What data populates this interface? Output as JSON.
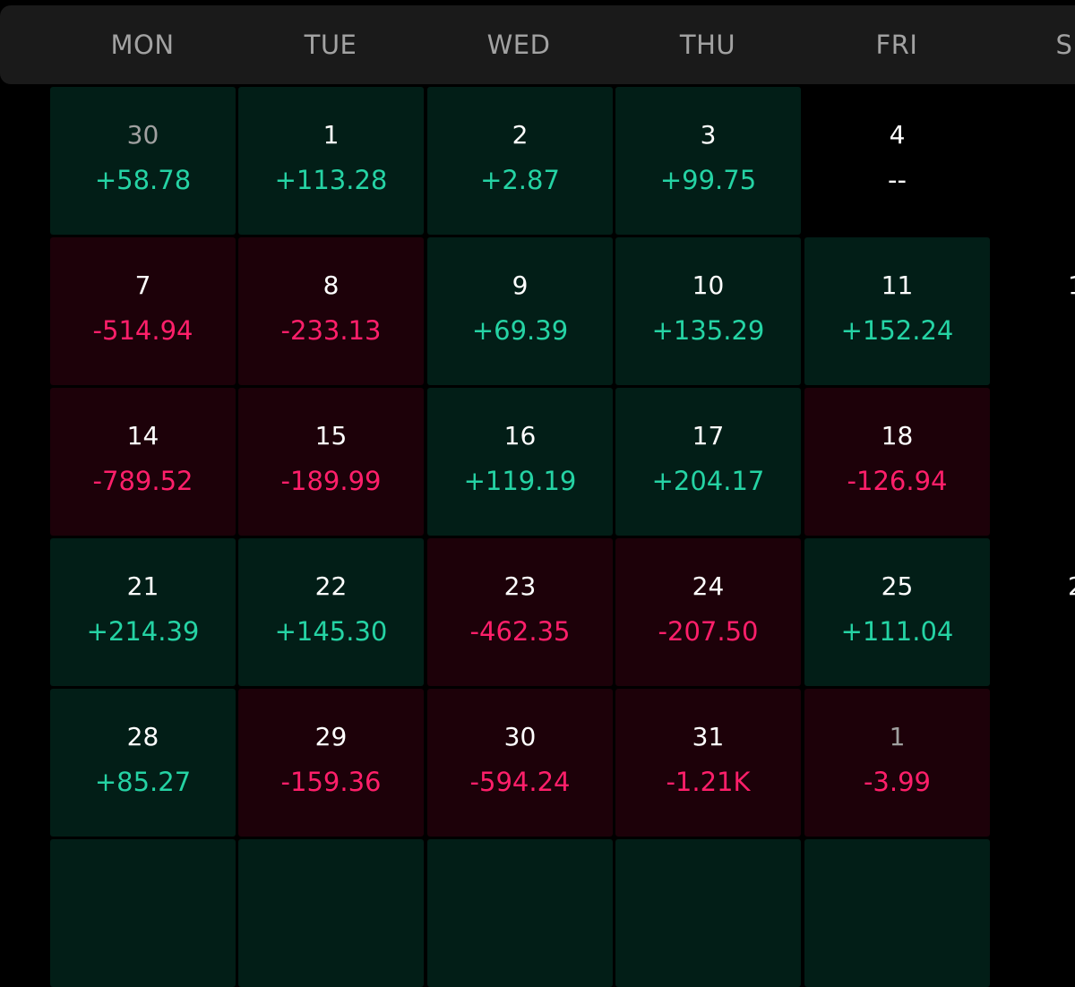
{
  "weekdays": [
    "MON",
    "TUE",
    "WED",
    "THU",
    "FRI",
    "S"
  ],
  "weeks": [
    [
      {
        "day": "30",
        "pnl": "+58.78",
        "state": "profit",
        "muted": true
      },
      {
        "day": "1",
        "pnl": "+113.28",
        "state": "profit",
        "muted": false
      },
      {
        "day": "2",
        "pnl": "+2.87",
        "state": "profit",
        "muted": false
      },
      {
        "day": "3",
        "pnl": "+99.75",
        "state": "profit",
        "muted": false
      },
      {
        "day": "4",
        "pnl": "--",
        "state": "empty",
        "muted": false
      }
    ],
    [
      {
        "day": "7",
        "pnl": "-514.94",
        "state": "loss",
        "muted": false
      },
      {
        "day": "8",
        "pnl": "-233.13",
        "state": "loss",
        "muted": false
      },
      {
        "day": "9",
        "pnl": "+69.39",
        "state": "profit",
        "muted": false
      },
      {
        "day": "10",
        "pnl": "+135.29",
        "state": "profit",
        "muted": false
      },
      {
        "day": "11",
        "pnl": "+152.24",
        "state": "profit",
        "muted": false
      }
    ],
    [
      {
        "day": "14",
        "pnl": "-789.52",
        "state": "loss",
        "muted": false
      },
      {
        "day": "15",
        "pnl": "-189.99",
        "state": "loss",
        "muted": false
      },
      {
        "day": "16",
        "pnl": "+119.19",
        "state": "profit",
        "muted": false
      },
      {
        "day": "17",
        "pnl": "+204.17",
        "state": "profit",
        "muted": false
      },
      {
        "day": "18",
        "pnl": "-126.94",
        "state": "loss",
        "muted": false
      }
    ],
    [
      {
        "day": "21",
        "pnl": "+214.39",
        "state": "profit",
        "muted": false
      },
      {
        "day": "22",
        "pnl": "+145.30",
        "state": "profit",
        "muted": false
      },
      {
        "day": "23",
        "pnl": "-462.35",
        "state": "loss",
        "muted": false
      },
      {
        "day": "24",
        "pnl": "-207.50",
        "state": "loss",
        "muted": false
      },
      {
        "day": "25",
        "pnl": "+111.04",
        "state": "profit",
        "muted": false
      }
    ],
    [
      {
        "day": "28",
        "pnl": "+85.27",
        "state": "profit",
        "muted": false
      },
      {
        "day": "29",
        "pnl": "-159.36",
        "state": "loss",
        "muted": false
      },
      {
        "day": "30",
        "pnl": "-594.24",
        "state": "loss",
        "muted": false
      },
      {
        "day": "31",
        "pnl": "-1.21K",
        "state": "loss",
        "muted": false
      },
      {
        "day": "1",
        "pnl": "-3.99",
        "state": "loss",
        "muted": true
      }
    ],
    [
      {
        "day": "",
        "pnl": "",
        "state": "profit",
        "muted": false
      },
      {
        "day": "",
        "pnl": "",
        "state": "profit",
        "muted": false
      },
      {
        "day": "",
        "pnl": "",
        "state": "profit",
        "muted": false
      },
      {
        "day": "",
        "pnl": "",
        "state": "profit",
        "muted": false
      },
      {
        "day": "",
        "pnl": "",
        "state": "profit",
        "muted": false
      }
    ]
  ],
  "edge_numbers": [
    "1",
    "",
    "2",
    ""
  ],
  "colors": {
    "profit_bg": "#021e17",
    "loss_bg": "#1d0109",
    "profit_text": "#25d3a4",
    "loss_text": "#ff1f6a"
  }
}
